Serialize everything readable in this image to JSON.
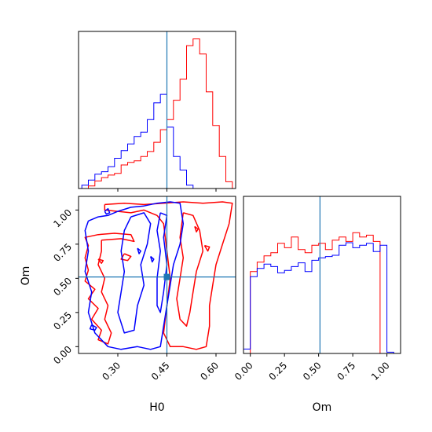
{
  "chart_data": {
    "type": "corner",
    "parameters": [
      "H0",
      "Om"
    ],
    "truth": {
      "H0": 0.45,
      "Om": 0.51
    },
    "colors": {
      "series_a": "#ff0000",
      "series_b": "#0000ff",
      "truth": "#1f77b4"
    },
    "panels": {
      "h0_hist": {
        "type": "histogram",
        "xlim": [
          0.18,
          0.66
        ],
        "bin_edges": [
          0.19,
          0.21,
          0.23,
          0.25,
          0.27,
          0.29,
          0.31,
          0.33,
          0.35,
          0.37,
          0.39,
          0.41,
          0.43,
          0.45,
          0.47,
          0.49,
          0.51,
          0.53,
          0.55,
          0.57,
          0.59,
          0.61,
          0.63,
          0.65
        ],
        "series": [
          {
            "key": "series_a",
            "counts": [
              0,
              3,
              9,
              13,
              16,
              18,
              28,
              31,
              33,
              38,
              44,
              55,
              70,
              82,
              105,
              130,
              170,
              178,
              160,
              115,
              75,
              38,
              8
            ]
          },
          {
            "key": "series_b",
            "counts": [
              4,
              10,
              17,
              20,
              26,
              36,
              45,
              53,
              62,
              67,
              82,
              102,
              112,
              73,
              38,
              22,
              4,
              0,
              0,
              0,
              0,
              0,
              0
            ]
          }
        ]
      },
      "om_hist": {
        "type": "histogram",
        "xlim": [
          -0.05,
          1.1
        ],
        "bin_edges": [
          -0.05,
          0.0,
          0.05,
          0.1,
          0.15,
          0.2,
          0.25,
          0.3,
          0.35,
          0.4,
          0.45,
          0.5,
          0.55,
          0.6,
          0.65,
          0.7,
          0.75,
          0.8,
          0.85,
          0.9,
          0.95,
          1.0,
          1.05
        ],
        "series": [
          {
            "key": "series_a",
            "counts": [
              0,
              130,
              145,
              155,
              160,
              175,
              168,
              185,
              165,
              160,
              172,
              175,
              165,
              180,
              185,
              178,
              192,
              185,
              188,
              178,
              0,
              0
            ]
          },
          {
            "key": "series_b",
            "counts": [
              7,
              122,
              135,
              142,
              138,
              128,
              132,
              138,
              144,
              130,
              148,
              152,
              154,
              156,
              172,
              176,
              168,
              172,
              175,
              162,
              172,
              2
            ]
          }
        ]
      },
      "scatter_2d": {
        "type": "contour",
        "xlim": [
          0.18,
          0.66
        ],
        "ylim": [
          -0.05,
          1.1
        ],
        "series": [
          {
            "key": "series_a",
            "contours": [
              [
                [
                  0.26,
                  1.04
                ],
                [
                  0.32,
                  1.05
                ],
                [
                  0.38,
                  1.04
                ],
                [
                  0.44,
                  1.05
                ],
                [
                  0.5,
                  1.06
                ],
                [
                  0.56,
                  1.05
                ],
                [
                  0.62,
                  1.06
                ],
                [
                  0.65,
                  1.05
                ],
                [
                  0.64,
                  0.9
                ],
                [
                  0.62,
                  0.75
                ],
                [
                  0.6,
                  0.6
                ],
                [
                  0.59,
                  0.45
                ],
                [
                  0.58,
                  0.3
                ],
                [
                  0.58,
                  0.15
                ],
                [
                  0.57,
                  0.0
                ],
                [
                  0.54,
                  -0.02
                ],
                [
                  0.5,
                  0.0
                ],
                [
                  0.46,
                  0.0
                ],
                [
                  0.44,
                  0.1
                ],
                [
                  0.45,
                  0.3
                ],
                [
                  0.46,
                  0.5
                ],
                [
                  0.45,
                  0.7
                ],
                [
                  0.44,
                  0.9
                ],
                [
                  0.42,
                  0.96
                ],
                [
                  0.38,
                  1.0
                ],
                [
                  0.34,
                  0.98
                ],
                [
                  0.3,
                  0.99
                ],
                [
                  0.26,
                  1.0
                ],
                [
                  0.26,
                  1.04
                ]
              ],
              [
                [
                  0.25,
                  0.78
                ],
                [
                  0.31,
                  0.79
                ],
                [
                  0.35,
                  0.77
                ],
                [
                  0.34,
                  0.82
                ],
                [
                  0.29,
                  0.83
                ],
                [
                  0.24,
                  0.82
                ],
                [
                  0.2,
                  0.8
                ],
                [
                  0.21,
                  0.74
                ],
                [
                  0.2,
                  0.65
                ],
                [
                  0.21,
                  0.56
                ],
                [
                  0.2,
                  0.48
                ],
                [
                  0.23,
                  0.42
                ],
                [
                  0.21,
                  0.35
                ],
                [
                  0.24,
                  0.28
                ],
                [
                  0.22,
                  0.2
                ],
                [
                  0.25,
                  0.12
                ],
                [
                  0.24,
                  0.05
                ],
                [
                  0.27,
                  0.02
                ],
                [
                  0.28,
                  0.1
                ],
                [
                  0.26,
                  0.2
                ],
                [
                  0.27,
                  0.3
                ],
                [
                  0.25,
                  0.4
                ],
                [
                  0.26,
                  0.5
                ],
                [
                  0.24,
                  0.6
                ],
                [
                  0.25,
                  0.7
                ],
                [
                  0.25,
                  0.78
                ]
              ],
              [
                [
                  0.5,
                  0.98
                ],
                [
                  0.53,
                  0.96
                ],
                [
                  0.55,
                  0.85
                ],
                [
                  0.56,
                  0.7
                ],
                [
                  0.54,
                  0.55
                ],
                [
                  0.53,
                  0.4
                ],
                [
                  0.52,
                  0.25
                ],
                [
                  0.51,
                  0.15
                ],
                [
                  0.49,
                  0.2
                ],
                [
                  0.48,
                  0.35
                ],
                [
                  0.49,
                  0.5
                ],
                [
                  0.5,
                  0.65
                ],
                [
                  0.49,
                  0.8
                ],
                [
                  0.5,
                  0.98
                ]
              ],
              [
                [
                  0.32,
                  0.68
                ],
                [
                  0.34,
                  0.66
                ],
                [
                  0.33,
                  0.63
                ],
                [
                  0.31,
                  0.64
                ],
                [
                  0.32,
                  0.68
                ]
              ],
              [
                [
                  0.535,
                  0.88
                ],
                [
                  0.545,
                  0.86
                ],
                [
                  0.54,
                  0.84
                ],
                [
                  0.535,
                  0.88
                ]
              ],
              [
                [
                  0.565,
                  0.74
                ],
                [
                  0.58,
                  0.73
                ],
                [
                  0.575,
                  0.7
                ],
                [
                  0.565,
                  0.74
                ]
              ],
              [
                [
                  0.24,
                  0.64
                ],
                [
                  0.255,
                  0.63
                ],
                [
                  0.25,
                  0.61
                ],
                [
                  0.24,
                  0.64
                ]
              ]
            ]
          },
          {
            "key": "series_b",
            "contours": [
              [
                [
                  0.21,
                  0.92
                ],
                [
                  0.24,
                  0.95
                ],
                [
                  0.27,
                  0.96
                ],
                [
                  0.3,
                  0.99
                ],
                [
                  0.34,
                  1.02
                ],
                [
                  0.38,
                  1.03
                ],
                [
                  0.42,
                  1.05
                ],
                [
                  0.46,
                  1.06
                ],
                [
                  0.49,
                  1.05
                ],
                [
                  0.5,
                  0.9
                ],
                [
                  0.49,
                  0.75
                ],
                [
                  0.47,
                  0.6
                ],
                [
                  0.46,
                  0.45
                ],
                [
                  0.45,
                  0.3
                ],
                [
                  0.44,
                  0.15
                ],
                [
                  0.43,
                  0.0
                ],
                [
                  0.4,
                  -0.02
                ],
                [
                  0.36,
                  0.0
                ],
                [
                  0.31,
                  -0.02
                ],
                [
                  0.27,
                  0.0
                ],
                [
                  0.23,
                  0.1
                ],
                [
                  0.21,
                  0.25
                ],
                [
                  0.22,
                  0.4
                ],
                [
                  0.2,
                  0.55
                ],
                [
                  0.21,
                  0.7
                ],
                [
                  0.2,
                  0.85
                ],
                [
                  0.21,
                  0.92
                ]
              ],
              [
                [
                  0.34,
                  0.95
                ],
                [
                  0.38,
                  0.98
                ],
                [
                  0.4,
                  0.9
                ],
                [
                  0.39,
                  0.75
                ],
                [
                  0.37,
                  0.6
                ],
                [
                  0.38,
                  0.45
                ],
                [
                  0.36,
                  0.3
                ],
                [
                  0.35,
                  0.12
                ],
                [
                  0.32,
                  0.1
                ],
                [
                  0.3,
                  0.25
                ],
                [
                  0.31,
                  0.4
                ],
                [
                  0.32,
                  0.55
                ],
                [
                  0.31,
                  0.7
                ],
                [
                  0.32,
                  0.85
                ],
                [
                  0.34,
                  0.95
                ]
              ],
              [
                [
                  0.43,
                  0.98
                ],
                [
                  0.45,
                  0.96
                ],
                [
                  0.44,
                  0.8
                ],
                [
                  0.45,
                  0.6
                ],
                [
                  0.44,
                  0.4
                ],
                [
                  0.43,
                  0.25
                ],
                [
                  0.42,
                  0.3
                ],
                [
                  0.42,
                  0.5
                ],
                [
                  0.43,
                  0.7
                ],
                [
                  0.42,
                  0.85
                ],
                [
                  0.43,
                  0.98
                ]
              ],
              [
                [
                  0.26,
                  0.99
                ],
                [
                  0.27,
                  1.01
                ],
                [
                  0.275,
                  0.98
                ],
                [
                  0.265,
                  0.97
                ],
                [
                  0.26,
                  0.99
                ]
              ],
              [
                [
                  0.22,
                  0.16
                ],
                [
                  0.235,
                  0.14
                ],
                [
                  0.23,
                  0.12
                ],
                [
                  0.215,
                  0.13
                ],
                [
                  0.22,
                  0.16
                ]
              ],
              [
                [
                  0.36,
                  0.72
                ],
                [
                  0.37,
                  0.7
                ],
                [
                  0.365,
                  0.68
                ],
                [
                  0.36,
                  0.72
                ]
              ],
              [
                [
                  0.4,
                  0.66
                ],
                [
                  0.41,
                  0.64
                ],
                [
                  0.405,
                  0.62
                ],
                [
                  0.4,
                  0.66
                ]
              ]
            ]
          }
        ]
      }
    },
    "axes": {
      "h0_hist": {
        "xticks": [
          0.3,
          0.45,
          0.6
        ],
        "xticklabels": [],
        "yticks": [],
        "xlabel": "",
        "ylabel": ""
      },
      "om_hist": {
        "xticks": [
          0.0,
          0.25,
          0.5,
          0.75,
          1.0
        ],
        "xticklabels": [
          "0.00",
          "0.25",
          "0.50",
          "0.75",
          "1.00"
        ],
        "xlabel": "Om"
      },
      "scatter_2d": {
        "xticks": [
          0.3,
          0.45,
          0.6
        ],
        "xticklabels": [
          "0.30",
          "0.45",
          "0.60"
        ],
        "yticks": [
          0.0,
          0.25,
          0.5,
          0.75,
          1.0
        ],
        "yticklabels": [
          "0.00",
          "0.25",
          "0.50",
          "0.75",
          "1.00"
        ],
        "xlabel": "H0",
        "ylabel": "Om"
      }
    }
  }
}
